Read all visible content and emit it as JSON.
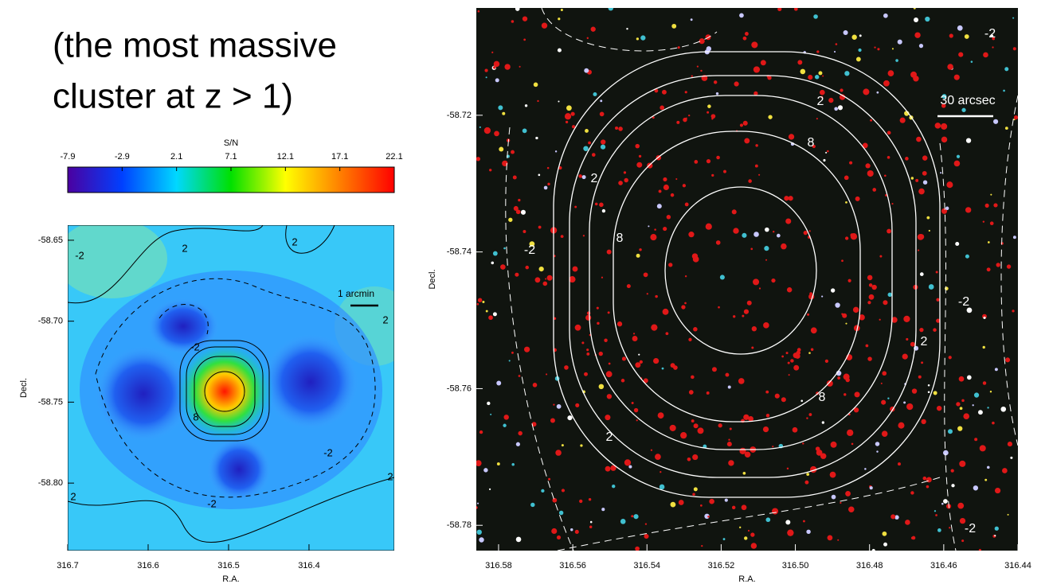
{
  "heading": [
    "(the most massive",
    "cluster at z > 1)"
  ],
  "chart_data": [
    {
      "type": "colorbar",
      "title": "S/N",
      "xlim": [
        -7.9,
        22.1
      ],
      "xticks": [
        -7.9,
        -2.9,
        2.1,
        7.1,
        12.1,
        17.1,
        22.1
      ],
      "colors": [
        "#4b00a0",
        "#0040ff",
        "#00d8ff",
        "#00e000",
        "#ffff00",
        "#ff8000",
        "#ff0000"
      ]
    },
    {
      "type": "image",
      "xlabel": "R.A.",
      "ylabel": "Decl.",
      "xlim": [
        316.7,
        316.294
      ],
      "ylim": [
        -58.8417,
        -58.6407
      ],
      "xticks": [
        316.7,
        316.6,
        316.5,
        316.4
      ],
      "yticks": [
        -58.65,
        {
          "value": -58.7,
          "label": "-58.70"
        },
        -58.75,
        {
          "value": -58.8,
          "label": "-58.80"
        }
      ],
      "scalebar": "1 arcmin",
      "contour_labels": [
        "-2",
        "2",
        "2",
        "2",
        "-2",
        "8",
        "-2",
        "-2",
        "2",
        "2"
      ]
    },
    {
      "type": "image",
      "xlabel": "R.A.",
      "ylabel": "Decl.",
      "xlim": [
        316.586,
        316.44
      ],
      "ylim": [
        -58.7837,
        -58.7043
      ],
      "xticks": [
        316.58,
        316.56,
        316.54,
        316.52,
        {
          "value": 316.5,
          "label": "316.50"
        },
        316.48,
        316.46,
        316.44
      ],
      "yticks": [
        -58.72,
        -58.74,
        -58.76,
        -58.78
      ],
      "scalebar": "30 arcsec",
      "contour_labels": [
        "-2",
        "2",
        "2",
        "8",
        "8",
        "2",
        "8",
        "-2",
        "2",
        "-2",
        "-2"
      ]
    }
  ]
}
